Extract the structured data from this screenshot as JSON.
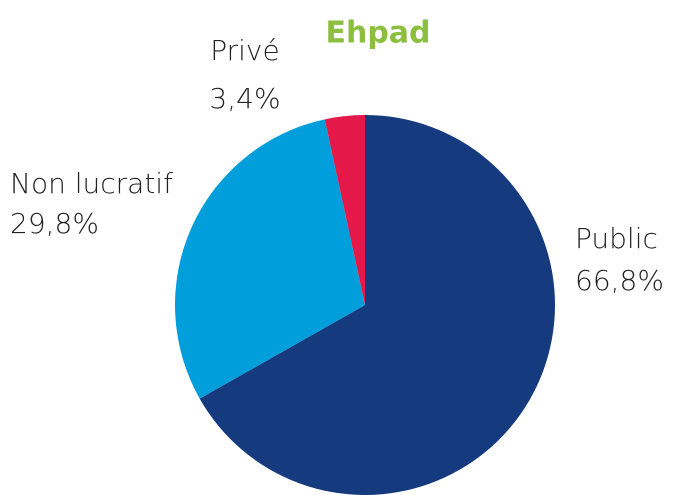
{
  "chart_data": {
    "type": "pie",
    "title": "Ehpad",
    "categories": [
      "Public",
      "Non lucratif",
      "Privé"
    ],
    "values": [
      66.8,
      29.8,
      3.4
    ],
    "value_labels": [
      "66,8%",
      "29,8%",
      "3,4%"
    ],
    "colors": [
      "#163a7e",
      "#009fdb",
      "#e5184a"
    ]
  }
}
